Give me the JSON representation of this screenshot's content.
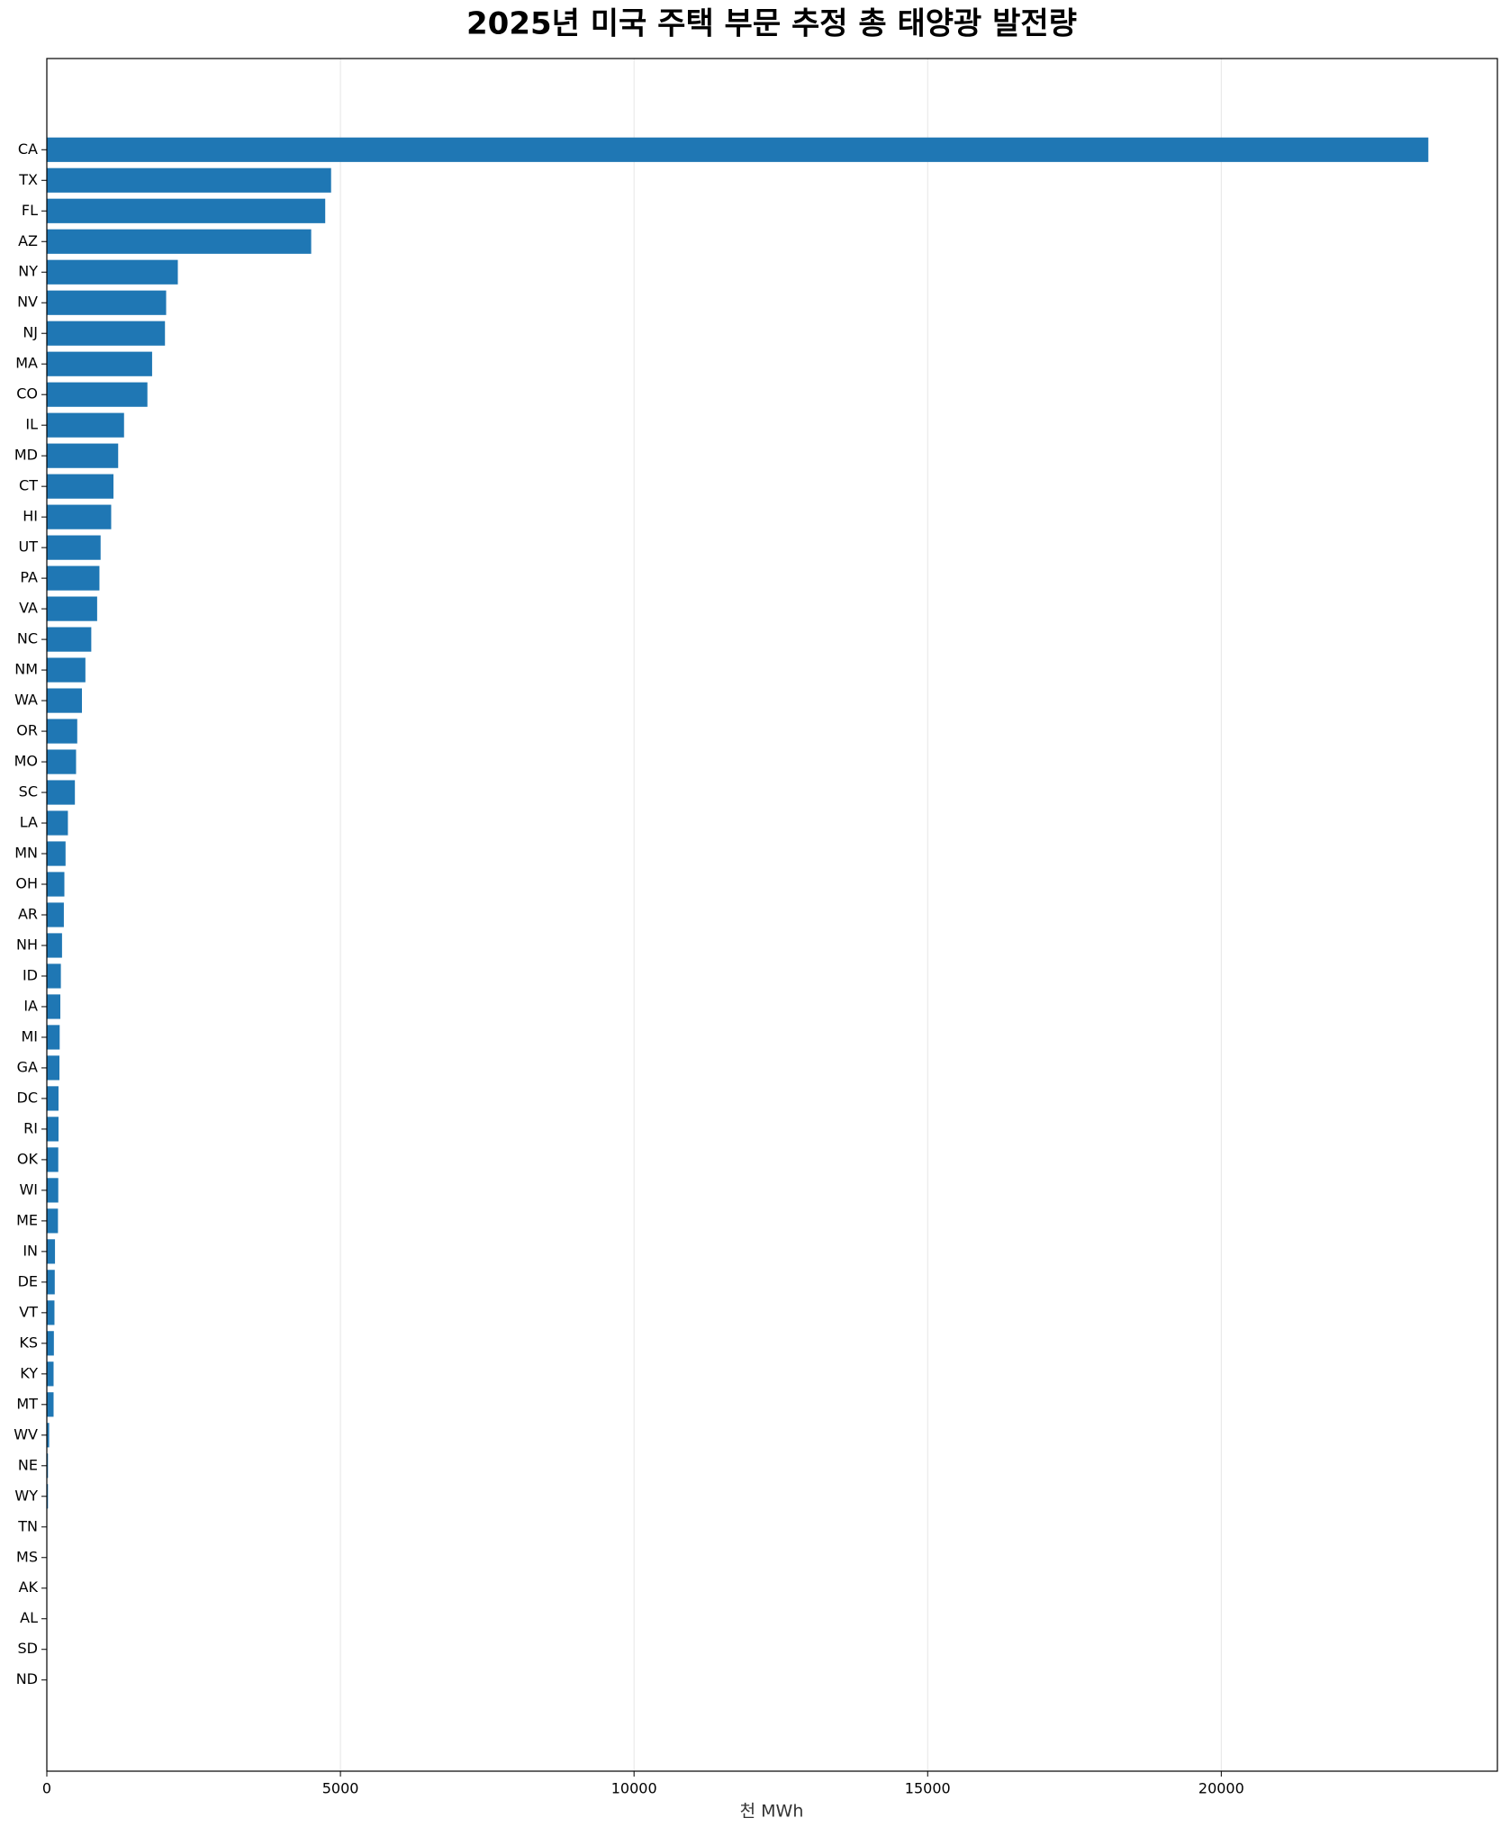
{
  "chart_data": {
    "type": "barh",
    "title": "2025년 미국 주택 부문 추정 총 태양광 발전량",
    "x_label": "천 MWh",
    "categories": [
      "CA",
      "TX",
      "FL",
      "AZ",
      "NY",
      "NV",
      "NJ",
      "MA",
      "CO",
      "IL",
      "MD",
      "CT",
      "HI",
      "UT",
      "PA",
      "VA",
      "NC",
      "NM",
      "WA",
      "OR",
      "MO",
      "SC",
      "LA",
      "MN",
      "OH",
      "AR",
      "NH",
      "ID",
      "IA",
      "MI",
      "GA",
      "DC",
      "RI",
      "OK",
      "WI",
      "ME",
      "IN",
      "DE",
      "VT",
      "KS",
      "KY",
      "MT",
      "WV",
      "NE",
      "WY",
      "TN",
      "MS",
      "AK",
      "AL",
      "SD",
      "ND"
    ],
    "values": [
      23526,
      4841,
      4741,
      4502,
      2231,
      2032,
      2012,
      1793,
      1713,
      1315,
      1215,
      1135,
      1096,
      916,
      896,
      857,
      757,
      657,
      598,
      518,
      498,
      478,
      359,
      319,
      299,
      290,
      259,
      239,
      230,
      219,
      215,
      199,
      199,
      195,
      195,
      190,
      139,
      135,
      130,
      120,
      115,
      115,
      40,
      20,
      20,
      5,
      3,
      2,
      1,
      1,
      0
    ],
    "color": "#1f77b4",
    "xlim": [
      0,
      24702
    ],
    "xticks": [
      0,
      5000,
      10000,
      15000,
      20000
    ],
    "grid": true
  }
}
